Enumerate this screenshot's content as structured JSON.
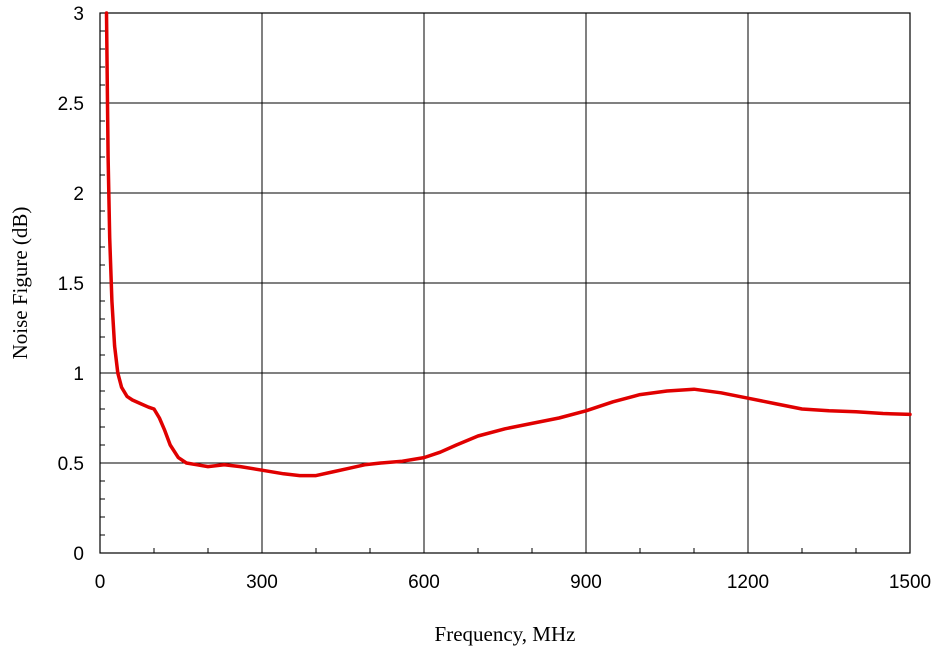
{
  "chart_data": {
    "type": "line",
    "title": "",
    "xlabel": "Frequency, MHz",
    "ylabel": "Noise Figure (dB)",
    "xlim": [
      0,
      1500
    ],
    "ylim": [
      0,
      3
    ],
    "xticks": [
      0,
      300,
      600,
      900,
      1200,
      1500
    ],
    "yticks": [
      0,
      0.5,
      1,
      1.5,
      2,
      2.5,
      3
    ],
    "xtick_labels": [
      "0",
      "300",
      "600",
      "900",
      "1200",
      "1500"
    ],
    "ytick_labels": [
      "0",
      "0.5",
      "1",
      "1.5",
      "2",
      "2.5",
      "3"
    ],
    "grid": true,
    "series_color": "#e00000",
    "series": [
      {
        "x": [
          12,
          15,
          18,
          22,
          27,
          33,
          40,
          50,
          60,
          75,
          90,
          100,
          110,
          120,
          130,
          145,
          160,
          180,
          200,
          230,
          260,
          300,
          340,
          370,
          400,
          430,
          460,
          490,
          520,
          560,
          600,
          630,
          660,
          700,
          750,
          800,
          850,
          900,
          950,
          1000,
          1050,
          1100,
          1150,
          1200,
          1250,
          1300,
          1350,
          1400,
          1450,
          1500
        ],
        "y": [
          3.0,
          2.2,
          1.75,
          1.4,
          1.15,
          1.0,
          0.92,
          0.87,
          0.85,
          0.83,
          0.81,
          0.8,
          0.75,
          0.68,
          0.6,
          0.53,
          0.5,
          0.49,
          0.48,
          0.49,
          0.48,
          0.46,
          0.44,
          0.43,
          0.43,
          0.45,
          0.47,
          0.49,
          0.5,
          0.51,
          0.53,
          0.56,
          0.6,
          0.65,
          0.69,
          0.72,
          0.75,
          0.79,
          0.84,
          0.88,
          0.9,
          0.91,
          0.89,
          0.86,
          0.83,
          0.8,
          0.79,
          0.785,
          0.775,
          0.77
        ]
      }
    ]
  }
}
